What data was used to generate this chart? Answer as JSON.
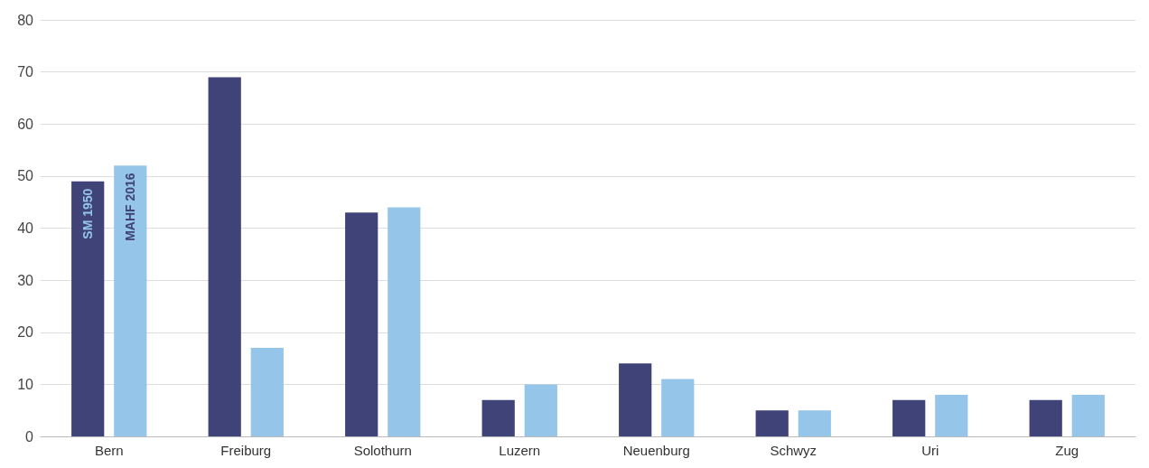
{
  "chart_data": {
    "type": "bar",
    "categories": [
      "Bern",
      "Freiburg",
      "Solothurn",
      "Luzern",
      "Neuenburg",
      "Schwyz",
      "Uri",
      "Zug"
    ],
    "series": [
      {
        "name": "SM 1950",
        "color": "#3f4377",
        "values": [
          49,
          69,
          43,
          7,
          14,
          5,
          7,
          7
        ]
      },
      {
        "name": "MAHF 2016",
        "color": "#95c5e8",
        "values": [
          52,
          17,
          44,
          10,
          11,
          5,
          8,
          8
        ]
      }
    ],
    "ylim": [
      0,
      80
    ],
    "yticks": [
      0,
      10,
      20,
      30,
      40,
      50,
      60,
      70,
      80
    ],
    "grid": "y",
    "legend": false
  }
}
